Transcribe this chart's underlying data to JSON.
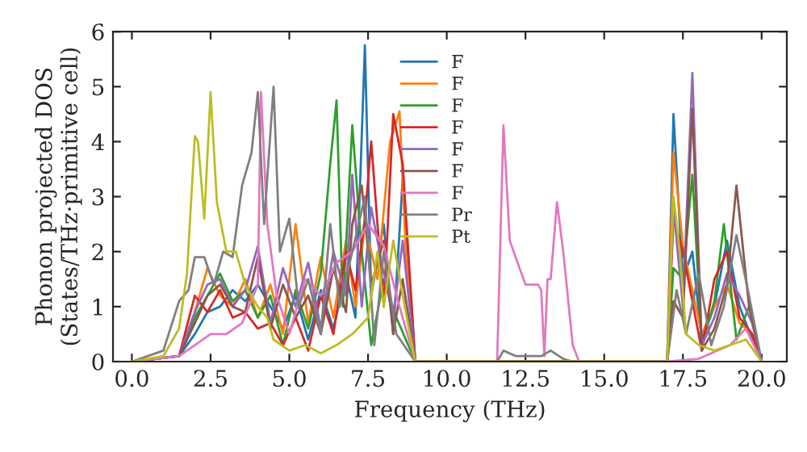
{
  "chart_data": {
    "type": "line",
    "xlabel": "Frequency (THz)",
    "ylabel": "Phonon projected DOS\n(States/THz·primitive cell)",
    "xlim": [
      -0.6,
      20.8
    ],
    "ylim": [
      0,
      6
    ],
    "xticks": [
      {
        "value": 0,
        "label": "0.0"
      },
      {
        "value": 2.5,
        "label": "2.5"
      },
      {
        "value": 5,
        "label": "5.0"
      },
      {
        "value": 7.5,
        "label": "7.5"
      },
      {
        "value": 10,
        "label": "10.0"
      },
      {
        "value": 12.5,
        "label": "12.5"
      },
      {
        "value": 15,
        "label": "15.0"
      },
      {
        "value": 17.5,
        "label": "17.5"
      },
      {
        "value": 20,
        "label": "20.0"
      }
    ],
    "yticks": [
      0,
      1,
      2,
      3,
      4,
      5,
      6
    ],
    "grid": false,
    "legend": "top",
    "marker": "none",
    "line_style": "solid",
    "series": [
      {
        "name": "F",
        "color": "#1f77b4",
        "x": [
          0,
          1.5,
          2,
          2.4,
          2.8,
          3.2,
          3.6,
          4,
          4.4,
          4.8,
          5.2,
          5.6,
          6,
          6.4,
          6.8,
          7.1,
          7.4,
          7.6,
          8,
          8.3,
          8.6,
          9,
          17,
          17.2,
          17.5,
          17.8,
          18.1,
          18.5,
          18.9,
          19.3,
          19.7,
          20
        ],
        "values": [
          0,
          0.1,
          0.5,
          0.9,
          1.0,
          1.3,
          1.1,
          1.4,
          1.0,
          0.6,
          1.2,
          0.4,
          1.3,
          0.6,
          1.6,
          0.8,
          5.75,
          1.2,
          2.5,
          0.5,
          3.3,
          0,
          0,
          4.5,
          1.5,
          2.0,
          0.4,
          1.0,
          2.2,
          1.0,
          0.4,
          0
        ]
      },
      {
        "name": "F",
        "color": "#ff7f0e",
        "x": [
          0,
          1.5,
          2,
          2.4,
          2.8,
          3.2,
          3.6,
          4,
          4.4,
          4.8,
          5.2,
          5.6,
          6,
          6.4,
          6.8,
          7.1,
          7.4,
          7.8,
          8.2,
          8.5,
          8.7,
          9,
          17,
          17.2,
          17.5,
          17.8,
          18.1,
          18.5,
          18.9,
          19.3,
          19.7,
          20
        ],
        "values": [
          0,
          0.1,
          0.9,
          1.7,
          1.2,
          1.0,
          1.5,
          0.8,
          1.4,
          0.5,
          2.5,
          0.7,
          1.9,
          0.8,
          2.2,
          1.0,
          2.5,
          1.5,
          4.0,
          4.55,
          2.0,
          0,
          0,
          3.8,
          2.1,
          1.3,
          0.5,
          1.0,
          1.4,
          0.7,
          0.5,
          0
        ]
      },
      {
        "name": "F",
        "color": "#2ca02c",
        "x": [
          0,
          1.5,
          2,
          2.4,
          2.8,
          3.2,
          3.6,
          4,
          4.4,
          4.8,
          5.2,
          5.6,
          6,
          6.3,
          6.5,
          6.7,
          7.0,
          7.3,
          7.6,
          8,
          8.4,
          9,
          17,
          17.2,
          17.5,
          17.8,
          18.1,
          18.5,
          18.8,
          19.2,
          19.6,
          20
        ],
        "values": [
          0,
          0.1,
          0.8,
          1.2,
          1.6,
          1.1,
          1.3,
          0.8,
          1.2,
          0.3,
          1.3,
          0.6,
          1.6,
          3.6,
          4.75,
          1.0,
          4.3,
          2.0,
          0.3,
          1.5,
          0.8,
          0,
          0,
          1.7,
          1.5,
          3.4,
          0.3,
          1.1,
          2.5,
          0.4,
          1.0,
          0
        ]
      },
      {
        "name": "F",
        "color": "#d62728",
        "x": [
          0,
          1.5,
          2,
          2.4,
          2.8,
          3.2,
          3.6,
          4,
          4.4,
          4.8,
          5.2,
          5.6,
          6,
          6.4,
          6.8,
          7.1,
          7.4,
          7.6,
          8,
          8.3,
          8.6,
          9,
          17,
          17.2,
          17.5,
          17.8,
          18.1,
          18.5,
          18.9,
          19.3,
          19.7,
          20
        ],
        "values": [
          0,
          0.1,
          1.2,
          0.9,
          1.3,
          0.8,
          0.9,
          0.6,
          0.7,
          0.3,
          0.8,
          0.2,
          1.2,
          0.5,
          2.0,
          1.3,
          2.6,
          4.0,
          1.0,
          4.5,
          3.6,
          0,
          0,
          2.6,
          2.0,
          1.1,
          0.2,
          1.5,
          2.0,
          0.8,
          0.5,
          0
        ]
      },
      {
        "name": "F",
        "color": "#9467bd",
        "x": [
          0,
          1.5,
          2,
          2.4,
          2.8,
          3.2,
          3.6,
          4,
          4.4,
          4.8,
          5.2,
          5.6,
          6,
          6.4,
          6.8,
          7.0,
          7.3,
          7.6,
          8,
          8.3,
          8.6,
          9,
          17,
          17.2,
          17.5,
          17.8,
          18.1,
          18.5,
          18.9,
          19.3,
          19.7,
          20
        ],
        "values": [
          0,
          0.1,
          0.9,
          1.4,
          1.5,
          1.0,
          1.3,
          2.1,
          0.7,
          1.7,
          1.0,
          1.8,
          0.6,
          2.0,
          1.2,
          3.4,
          1.0,
          2.8,
          1.6,
          0.8,
          2.2,
          0,
          0,
          2.8,
          1.0,
          5.25,
          0.3,
          0.8,
          1.6,
          1.2,
          0.7,
          0
        ]
      },
      {
        "name": "F",
        "color": "#8c564b",
        "x": [
          0,
          1.5,
          2,
          2.4,
          2.8,
          3.2,
          3.6,
          4,
          4.4,
          4.8,
          5.2,
          5.6,
          6,
          6.4,
          6.8,
          7.0,
          7.3,
          7.6,
          8,
          8.3,
          8.6,
          9,
          17,
          17.2,
          17.5,
          17.8,
          18.1,
          18.5,
          18.9,
          19.2,
          19.6,
          20
        ],
        "values": [
          0,
          0.1,
          0.7,
          1.2,
          1.4,
          1.0,
          0.9,
          1.9,
          0.6,
          1.4,
          0.8,
          1.2,
          0.5,
          1.7,
          0.9,
          2.5,
          3.2,
          1.4,
          2.2,
          0.5,
          1.5,
          0,
          0,
          1.1,
          0.8,
          4.6,
          0.2,
          0.6,
          1.4,
          3.2,
          1.0,
          0
        ]
      },
      {
        "name": "F",
        "color": "#e377c2",
        "x": [
          0,
          1.5,
          2,
          2.5,
          3,
          3.5,
          4,
          4.1,
          4.3,
          4.6,
          5,
          5.5,
          6,
          6.5,
          7,
          7.5,
          8,
          8.5,
          9,
          11.6,
          11.8,
          12,
          12.5,
          12.9,
          13.0,
          13.1,
          13.2,
          13.3,
          13.5,
          13.7,
          14,
          14.2,
          17,
          18,
          19,
          19.5,
          20
        ],
        "values": [
          0,
          0.1,
          0.3,
          0.5,
          0.5,
          0.7,
          1.4,
          4.9,
          2.5,
          1.2,
          0.5,
          1.5,
          1.2,
          1.8,
          2.0,
          2.5,
          2.1,
          1.0,
          0,
          0,
          4.3,
          2.2,
          1.4,
          1.4,
          1.3,
          0.1,
          1.5,
          1.5,
          2.9,
          2.0,
          0.3,
          0,
          0,
          0.05,
          0.3,
          0.6,
          0
        ]
      },
      {
        "name": "Pr",
        "color": "#7f7f7f",
        "x": [
          0,
          1,
          1.5,
          1.8,
          2,
          2.3,
          2.6,
          2.9,
          3.2,
          3.5,
          3.8,
          4,
          4.2,
          4.5,
          4.7,
          5,
          5.3,
          5.6,
          6,
          6.3,
          6.6,
          7,
          7.4,
          7.7,
          8,
          8.4,
          9,
          11.6,
          11.8,
          12.2,
          13,
          13.3,
          13.7,
          14,
          17,
          17.3,
          17.6,
          18,
          18.4,
          18.8,
          19.2,
          19.6,
          20
        ],
        "values": [
          0,
          0.2,
          1.1,
          1.3,
          1.9,
          1.9,
          1.4,
          2.0,
          1.9,
          3.2,
          3.8,
          4.9,
          2.5,
          5.0,
          2.0,
          2.6,
          1.0,
          1.5,
          0.5,
          2.5,
          1.0,
          2.0,
          3.0,
          0.3,
          2.0,
          0.5,
          0,
          0,
          0.2,
          0.1,
          0.1,
          0.2,
          0.05,
          0,
          0,
          1.3,
          0.5,
          1.6,
          0.3,
          1.0,
          2.3,
          1.2,
          0
        ]
      },
      {
        "name": "Pt",
        "color": "#bcbd22",
        "x": [
          0,
          1,
          1.5,
          1.75,
          2,
          2.1,
          2.3,
          2.5,
          2.7,
          3,
          3.3,
          3.6,
          4,
          4.3,
          4.5,
          5,
          5.5,
          6,
          6.5,
          7,
          7.5,
          7.8,
          8,
          8.3,
          8.6,
          9,
          17,
          17.2,
          17.4,
          17.6,
          18,
          18.5,
          19,
          19.5,
          20
        ],
        "values": [
          0,
          0.1,
          0.6,
          1.6,
          4.1,
          4.0,
          2.6,
          4.9,
          2.9,
          2.0,
          2.0,
          1.4,
          1.0,
          0.8,
          0.4,
          0.2,
          0.3,
          0.15,
          0.3,
          0.5,
          0.8,
          2.0,
          1.0,
          2.2,
          1.2,
          0,
          0,
          3.0,
          2.0,
          0.5,
          0.3,
          0.2,
          0.3,
          0.4,
          0
        ]
      }
    ]
  }
}
